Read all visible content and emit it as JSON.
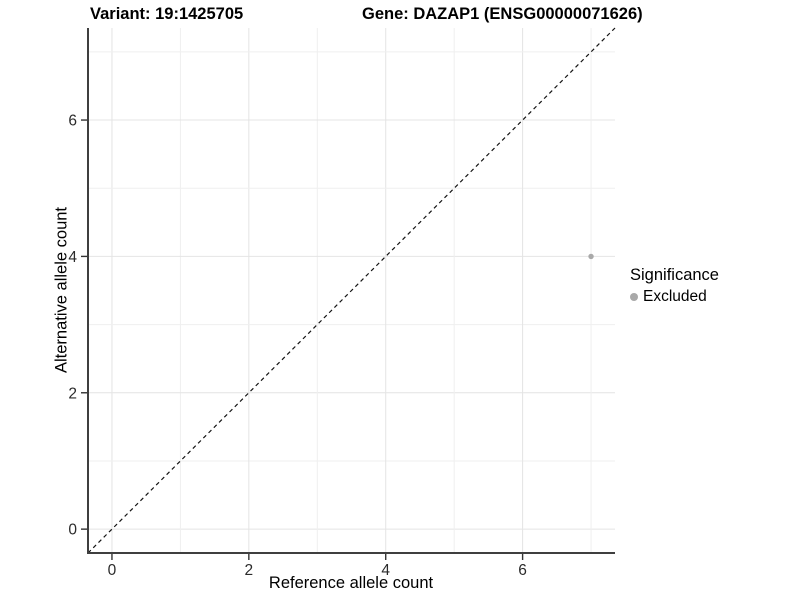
{
  "chart_data": {
    "type": "scatter",
    "title_left": "Variant: 19:1425705",
    "title_right": "Gene: DAZAP1 (ENSG00000071626)",
    "xlabel": "Reference allele count",
    "ylabel": "Alternative allele count",
    "xlim": [
      -0.35,
      7.35
    ],
    "ylim": [
      -0.35,
      7.35
    ],
    "x_ticks": [
      0,
      2,
      4,
      6
    ],
    "y_ticks": [
      0,
      2,
      4,
      6
    ],
    "grid_positions": [
      0,
      1,
      2,
      3,
      4,
      5,
      6,
      7
    ],
    "grid": true,
    "points": [
      {
        "x": 7,
        "y": 4,
        "series": "Excluded"
      }
    ],
    "identity_line": {
      "style": "dashed",
      "from": [
        -0.35,
        -0.35
      ],
      "to": [
        7.35,
        7.35
      ]
    },
    "legend": {
      "title": "Significance",
      "position": "right",
      "items": [
        {
          "label": "Excluded",
          "color": "#a9a9a9"
        }
      ]
    },
    "colors": {
      "point": "#a9a9a9",
      "grid_major": "#e4e4e4",
      "grid_minor": "#efefef",
      "axis_line": "#3f3f3f",
      "tick_mark": "#333333",
      "tick_text": "#2b2b2b",
      "dashed_line": "#141414",
      "background": "#ffffff"
    }
  }
}
